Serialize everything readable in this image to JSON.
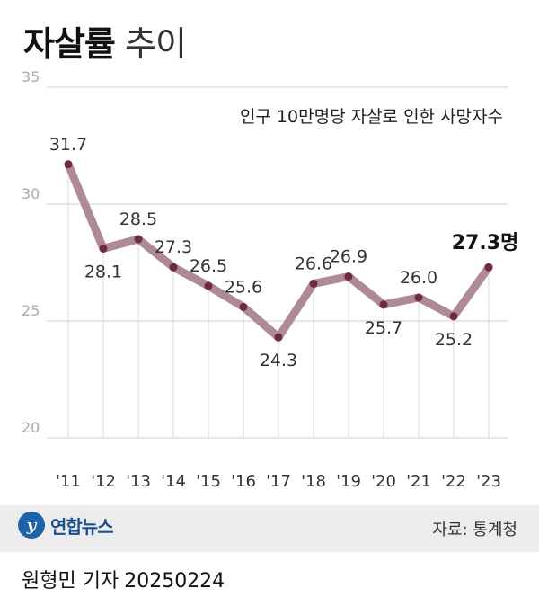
{
  "title": {
    "bold": "자살률",
    "light": "추이"
  },
  "chart_data": {
    "type": "line",
    "subtitle": "인구 10만명당 자살로 인한 사망자수",
    "categories": [
      "'11",
      "'12",
      "'13",
      "'14",
      "'15",
      "'16",
      "'17",
      "'18",
      "'19",
      "'20",
      "'21",
      "'22",
      "'23"
    ],
    "values": [
      31.7,
      28.1,
      28.5,
      27.3,
      26.5,
      25.6,
      24.3,
      26.6,
      26.9,
      25.7,
      26.0,
      25.2,
      27.3
    ],
    "value_labels": [
      "31.7",
      "28.1",
      "28.5",
      "27.3",
      "26.5",
      "25.6",
      "24.3",
      "26.6",
      "26.9",
      "25.7",
      "26.0",
      "25.2",
      "27.3명"
    ],
    "ylim": [
      20,
      35
    ],
    "yticks": [
      "20",
      "25",
      "30",
      "35"
    ],
    "grid": true,
    "line_color": "#ad8a96",
    "marker_color": "#6e2b42",
    "highlight_last": true
  },
  "footer": {
    "logo_mark": "y",
    "logo_text": "연합뉴스",
    "source": "자료: 통계청"
  },
  "byline": {
    "author": "원형민 기자",
    "date": "20250224"
  }
}
